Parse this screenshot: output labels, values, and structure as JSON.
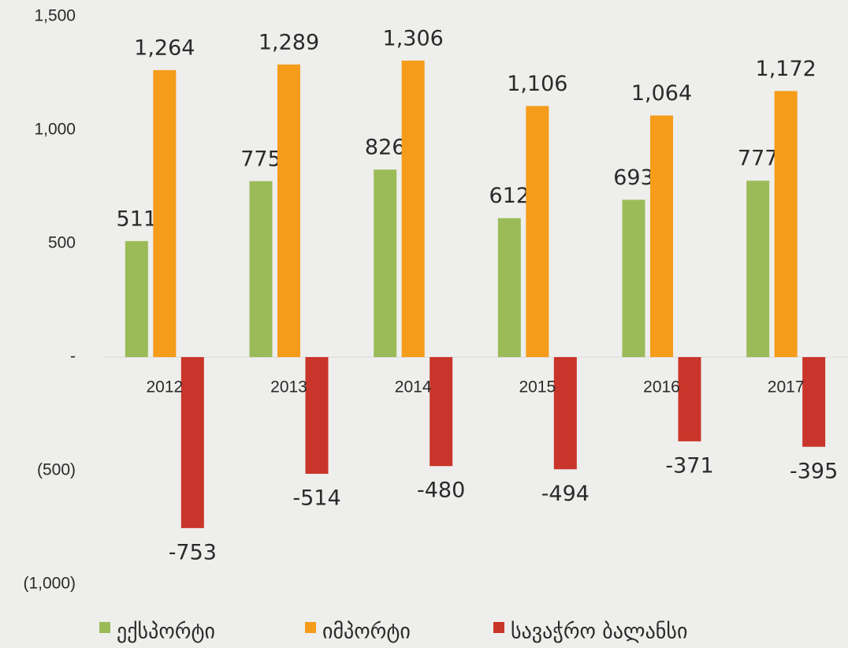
{
  "chart_data": {
    "type": "bar",
    "categories": [
      "2012",
      "2013",
      "2014",
      "2015",
      "2016",
      "2017"
    ],
    "series": [
      {
        "name": "ექსპორტი",
        "color": "#9bbb59",
        "values": [
          511,
          775,
          826,
          612,
          693,
          777
        ]
      },
      {
        "name": "იმპორტი",
        "color": "#f59c1a",
        "values": [
          1264,
          1289,
          1306,
          1106,
          1064,
          1172
        ],
        "value_labels": [
          "1,264",
          "1,289",
          "1,306",
          "1,106",
          "1,064",
          "1,172"
        ]
      },
      {
        "name": "სავაჭრო ბალანსი",
        "color": "#c9352a",
        "values": [
          -753,
          -514,
          -480,
          -494,
          -371,
          -395
        ]
      }
    ],
    "ylim": [
      -1000,
      1500
    ],
    "yticks": [
      {
        "value": -1000,
        "label": "(1,000)"
      },
      {
        "value": -500,
        "label": "(500)"
      },
      {
        "value": 0,
        "label": "-"
      },
      500,
      {
        "value": 1000,
        "label": "1,000"
      },
      {
        "value": 1500,
        "label": "1,500"
      }
    ],
    "legend": "bottom"
  }
}
